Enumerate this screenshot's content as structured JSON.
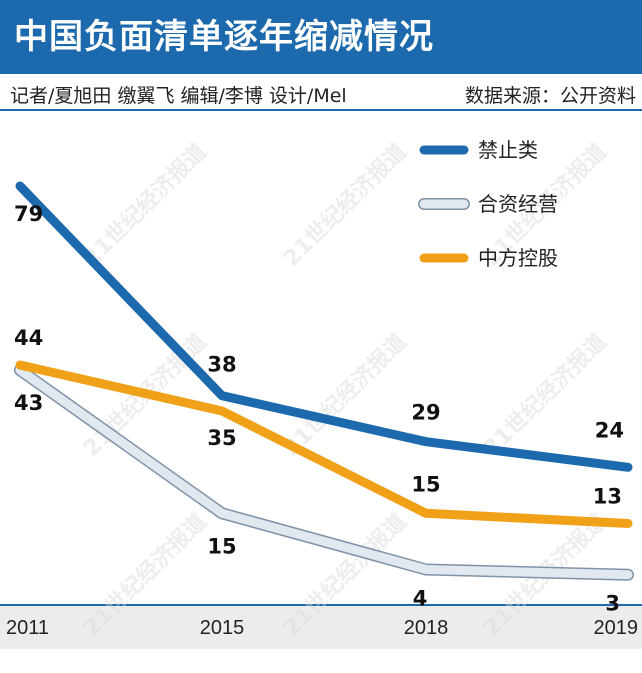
{
  "header": {
    "title": "中国负面清单逐年缩减情况",
    "credits": "记者/夏旭田 缴翼飞  编辑/李博  设计/Mel",
    "source": "数据来源：公开资料"
  },
  "watermark": "21世纪经济报道",
  "colors": {
    "title_bar": "#1c6aad",
    "series": [
      "#1c6aad",
      "#e2e8ef",
      "#f0a118"
    ],
    "series_outline": [
      "#1c6aad",
      "#7f93a8",
      "#f0a118"
    ]
  },
  "chart_data": {
    "type": "line",
    "title": "中国负面清单逐年缩减情况",
    "x": [
      "2011",
      "2015",
      "2018",
      "2019"
    ],
    "series": [
      {
        "name": "禁止类",
        "values": [
          79,
          38,
          29,
          24
        ]
      },
      {
        "name": "合资经营",
        "values": [
          43,
          15,
          4,
          3
        ]
      },
      {
        "name": "中方控股",
        "values": [
          44,
          35,
          15,
          13
        ]
      }
    ],
    "ylim": [
      0,
      88
    ],
    "grid": false,
    "legend": "top-right"
  }
}
